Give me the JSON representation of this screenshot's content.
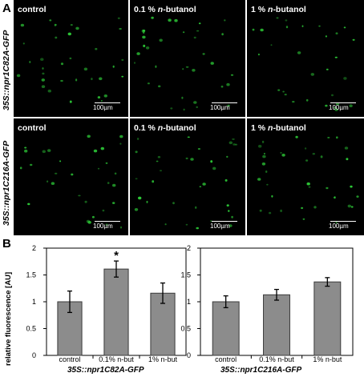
{
  "panels": {
    "a": "A",
    "b": "B"
  },
  "micrographs": {
    "rows": [
      {
        "label": "35S::npr1C82A-GFP",
        "tiles": [
          {
            "pre": "control",
            "em": "",
            "post": ""
          },
          {
            "pre": "0.1 % ",
            "em": "n",
            "post": "-butanol"
          },
          {
            "pre": "1 % ",
            "em": "n",
            "post": "-butanol"
          }
        ]
      },
      {
        "label": "35S::npr1C216A-GFP",
        "tiles": [
          {
            "pre": "control",
            "em": "",
            "post": ""
          },
          {
            "pre": "0.1 % ",
            "em": "n",
            "post": "-butanol"
          },
          {
            "pre": "1 % ",
            "em": "n",
            "post": "-butanol"
          }
        ]
      }
    ],
    "scale_label": "100µm"
  },
  "colors": {
    "fluorescence": "#2fd43a",
    "bar": "#8c8c8c",
    "bar_edge": "#3a3a3a"
  },
  "ylabel": "relative fluorescence [AU]",
  "chart_data": [
    {
      "type": "bar",
      "title": "35S::npr1C82A-GFP",
      "categories": [
        "control",
        "0.1% n-but",
        "1% n-but"
      ],
      "values": [
        1.0,
        1.61,
        1.16
      ],
      "errors": [
        0.2,
        0.15,
        0.19
      ],
      "annotations": [
        "",
        "*",
        ""
      ],
      "ylabel": "relative fluorescence [AU]",
      "ylim": [
        0,
        2
      ],
      "yticks": [
        "0",
        "0.5",
        "1",
        "1.5",
        "2"
      ]
    },
    {
      "type": "bar",
      "title": "35S::npr1C216A-GFP",
      "categories": [
        "control",
        "0.1% n-but",
        "1% n-but"
      ],
      "values": [
        1.0,
        1.13,
        1.37
      ],
      "errors": [
        0.11,
        0.1,
        0.08
      ],
      "annotations": [
        "",
        "",
        ""
      ],
      "ylabel": "",
      "ylim": [
        0,
        2
      ],
      "yticks": [
        "0",
        "0.5",
        "1",
        "1.5",
        "2"
      ]
    }
  ]
}
